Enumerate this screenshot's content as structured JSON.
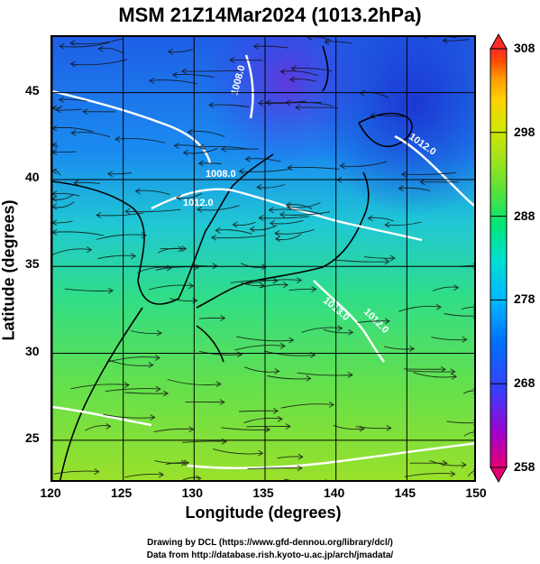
{
  "title": "MSM 21Z14Mar2024 (1013.2hPa)",
  "axes": {
    "xlabel": "Longitude (degrees)",
    "ylabel": "Latitude (degrees)",
    "x_ticks": [
      "120",
      "125",
      "130",
      "135",
      "140",
      "145",
      "150"
    ],
    "y_ticks": [
      "25",
      "30",
      "35",
      "40",
      "45"
    ]
  },
  "contour_labels": [
    "1008.0",
    "1008.0",
    "1012.0",
    "1013.0",
    "1012.0",
    "1012.0"
  ],
  "colorbar": {
    "min": 258,
    "max": 308,
    "ticks": [
      "308",
      "298",
      "288",
      "278",
      "268",
      "258"
    ],
    "colors": [
      "#e60073",
      "#a000c8",
      "#3c3cff",
      "#0070ff",
      "#00b8ff",
      "#00e0d0",
      "#00e676",
      "#58e23a",
      "#a4e21c",
      "#d8e600",
      "#ffd000",
      "#ff9a00",
      "#ff4c00",
      "#ff2a2a"
    ]
  },
  "credits": {
    "line1": "Drawing by DCL (https://www.gfd-dennou.org/library/dcl/)",
    "line2": "Data from http://database.rish.kyoto-u.ac.jp/arch/jmadata/"
  }
}
